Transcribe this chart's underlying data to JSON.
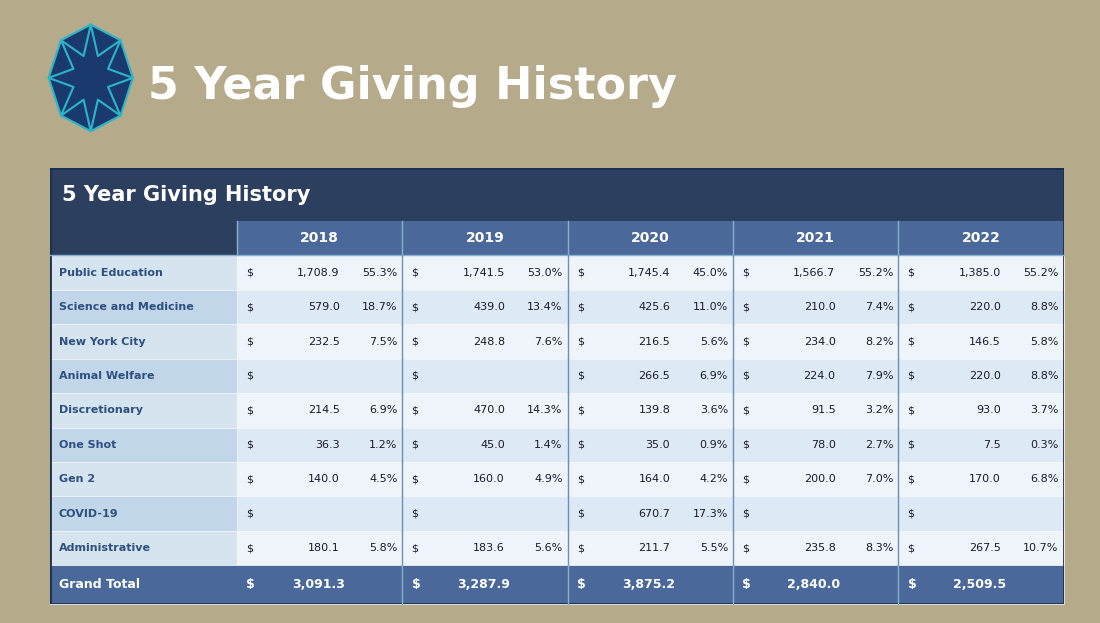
{
  "title": "5 Year Giving History",
  "bg_color": "#b5aa8a",
  "table_title_bg": "#2d3f5e",
  "year_header_bg": "#4a6899",
  "row_label_bg_odd": "#d6e4f0",
  "row_label_bg_even": "#c2d6ea",
  "row_data_bg_odd": "#eef4f9",
  "row_data_bg_even": "#ddeaf5",
  "grand_total_bg": "#4a6899",
  "row_label_text": "#2d5080",
  "data_text_color": "#1a1a2e",
  "years": [
    "2018",
    "2019",
    "2020",
    "2021",
    "2022"
  ],
  "categories": [
    "Public Education",
    "Science and Medicine",
    "New York City",
    "Animal Welfare",
    "Discretionary",
    "One Shot",
    "Gen 2",
    "COVID-19",
    "Administrative"
  ],
  "data": [
    [
      [
        "$",
        "1,708.9",
        "55.3%"
      ],
      [
        "$",
        "1,741.5",
        "53.0%"
      ],
      [
        "$",
        "1,745.4",
        "45.0%"
      ],
      [
        "$",
        "1,566.7",
        "55.2%"
      ],
      [
        "$",
        "1,385.0",
        "55.2%"
      ]
    ],
    [
      [
        "$",
        "579.0",
        "18.7%"
      ],
      [
        "$",
        "439.0",
        "13.4%"
      ],
      [
        "$",
        "425.6",
        "11.0%"
      ],
      [
        "$",
        "210.0",
        "7.4%"
      ],
      [
        "$",
        "220.0",
        "8.8%"
      ]
    ],
    [
      [
        "$",
        "232.5",
        "7.5%"
      ],
      [
        "$",
        "248.8",
        "7.6%"
      ],
      [
        "$",
        "216.5",
        "5.6%"
      ],
      [
        "$",
        "234.0",
        "8.2%"
      ],
      [
        "$",
        "146.5",
        "5.8%"
      ]
    ],
    [
      [
        "$",
        "",
        ""
      ],
      [
        "$",
        "",
        ""
      ],
      [
        "$",
        "266.5",
        "6.9%"
      ],
      [
        "$",
        "224.0",
        "7.9%"
      ],
      [
        "$",
        "220.0",
        "8.8%"
      ]
    ],
    [
      [
        "$",
        "214.5",
        "6.9%"
      ],
      [
        "$",
        "470.0",
        "14.3%"
      ],
      [
        "$",
        "139.8",
        "3.6%"
      ],
      [
        "$",
        "91.5",
        "3.2%"
      ],
      [
        "$",
        "93.0",
        "3.7%"
      ]
    ],
    [
      [
        "$",
        "36.3",
        "1.2%"
      ],
      [
        "$",
        "45.0",
        "1.4%"
      ],
      [
        "$",
        "35.0",
        "0.9%"
      ],
      [
        "$",
        "78.0",
        "2.7%"
      ],
      [
        "$",
        "7.5",
        "0.3%"
      ]
    ],
    [
      [
        "$",
        "140.0",
        "4.5%"
      ],
      [
        "$",
        "160.0",
        "4.9%"
      ],
      [
        "$",
        "164.0",
        "4.2%"
      ],
      [
        "$",
        "200.0",
        "7.0%"
      ],
      [
        "$",
        "170.0",
        "6.8%"
      ]
    ],
    [
      [
        "$",
        "",
        ""
      ],
      [
        "$",
        "",
        ""
      ],
      [
        "$",
        "670.7",
        "17.3%"
      ],
      [
        "$",
        "",
        ""
      ],
      [
        "$",
        "",
        ""
      ]
    ],
    [
      [
        "$",
        "180.1",
        "5.8%"
      ],
      [
        "$",
        "183.6",
        "5.6%"
      ],
      [
        "$",
        "211.7",
        "5.5%"
      ],
      [
        "$",
        "235.8",
        "8.3%"
      ],
      [
        "$",
        "267.5",
        "10.7%"
      ]
    ]
  ],
  "grand_totals": [
    "3,091.3",
    "3,287.9",
    "3,875.2",
    "2,840.0",
    "2,509.5"
  ]
}
